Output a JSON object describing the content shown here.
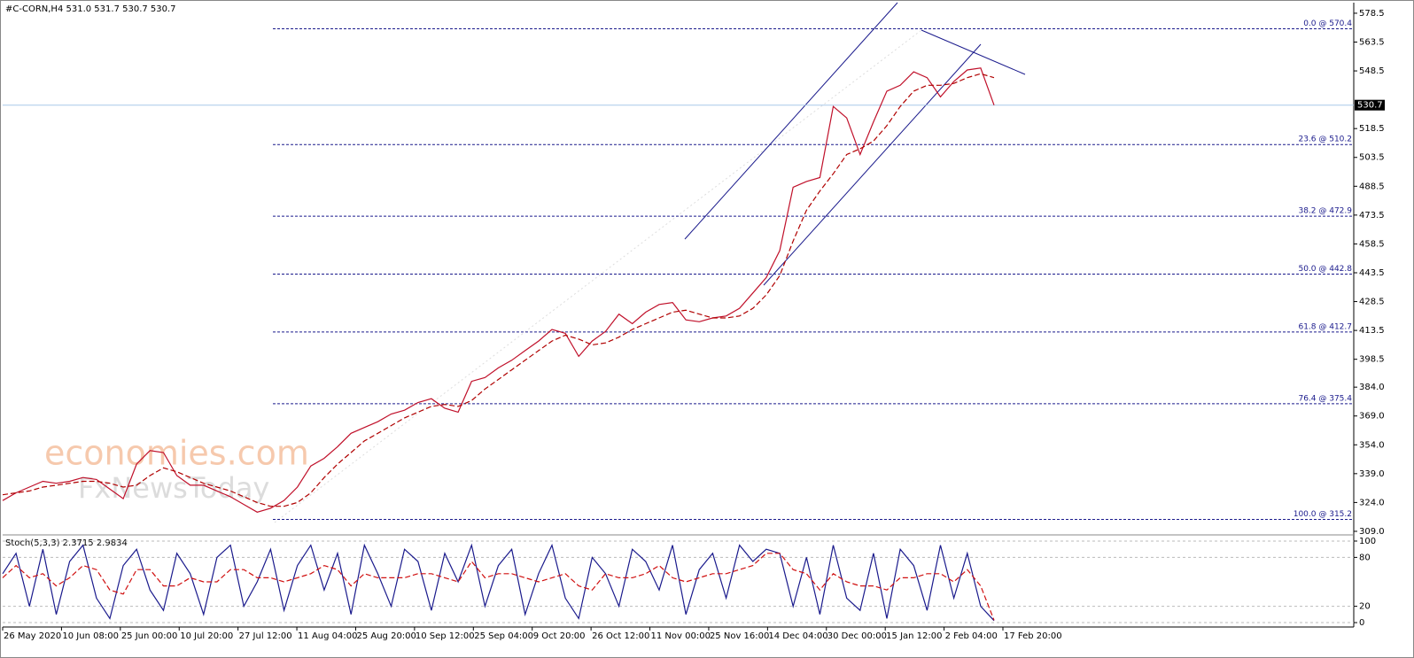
{
  "chart_data": {
    "type": "line",
    "title": "#C-CORN,H4  531.0 531.7 530.7 530.7",
    "watermarks": [
      "economies.com",
      "FxNewsToday"
    ],
    "ylim": [
      307.6,
      584.0
    ],
    "yticks": [
      578.5,
      563.5,
      548.5,
      518.5,
      503.5,
      488.5,
      473.5,
      458.5,
      443.5,
      428.5,
      413.5,
      398.5,
      {
        "value": 384.0,
        "label": "384.0"
      },
      {
        "value": 369.0,
        "label": "369.0"
      },
      {
        "value": 354.0,
        "label": "354.0"
      },
      {
        "value": 339.0,
        "label": "339.0"
      },
      {
        "value": 324.0,
        "label": "324.0"
      },
      {
        "value": 309.0,
        "label": "309.0"
      }
    ],
    "current_price": 530.7,
    "fib_levels": [
      {
        "value": 570.4,
        "label": "0.0 @ 570.4"
      },
      {
        "value": 510.2,
        "label": "23.6 @ 510.2"
      },
      {
        "value": 472.9,
        "label": "38.2 @ 472.9"
      },
      {
        "value": 442.8,
        "label": "50.0 @ 442.8"
      },
      {
        "value": 412.7,
        "label": "61.8 @ 412.7"
      },
      {
        "value": 375.4,
        "label": "76.4 @ 375.4"
      },
      {
        "value": 315.2,
        "label": "100.0 @ 315.2"
      }
    ],
    "x_labels": [
      "26 May 2020",
      "10 Jun 08:00",
      "25 Jun 00:00",
      "10 Jul 20:00",
      "27 Jul 12:00",
      "11 Aug 04:00",
      "25 Aug 20:00",
      "10 Sep 12:00",
      "25 Sep 04:00",
      "9 Oct 20:00",
      "26 Oct 12:00",
      "11 Nov 00:00",
      "25 Nov 16:00",
      "14 Dec 04:00",
      "30 Dec 00:00",
      "15 Jan 12:00",
      "2 Feb 04:00",
      "17 Feb 20:00"
    ],
    "series": [
      {
        "color": "#c0102a",
        "values": [
          325,
          329,
          332,
          335,
          334,
          335,
          337,
          336,
          331,
          326,
          344,
          351,
          350,
          338,
          333,
          333,
          330,
          327,
          323,
          319,
          321,
          325,
          332,
          343,
          347,
          353,
          360,
          363,
          366,
          370,
          372,
          376,
          378,
          373,
          371,
          387,
          389,
          394,
          398,
          403,
          408,
          414,
          412,
          400,
          408,
          413,
          422,
          417,
          423,
          427,
          428,
          419,
          418,
          420,
          421,
          425,
          433,
          441,
          455,
          488,
          491,
          493,
          530,
          524,
          505,
          522,
          538,
          541,
          548,
          545,
          535,
          543,
          549,
          550,
          530.7
        ]
      },
      {
        "color": "#b00000",
        "dashed": true,
        "values": [
          328,
          329,
          330,
          332,
          333,
          334,
          335,
          335,
          334,
          332,
          333,
          338,
          342,
          340,
          337,
          334,
          332,
          330,
          327,
          324,
          322,
          322,
          324,
          329,
          337,
          344,
          350,
          356,
          360,
          364,
          368,
          371,
          374,
          375,
          374,
          377,
          383,
          388,
          393,
          398,
          403,
          408,
          411,
          409,
          406,
          407,
          410,
          414,
          417,
          420,
          423,
          424,
          422,
          420,
          420,
          421,
          425,
          432,
          442,
          460,
          476,
          486,
          495,
          505,
          508,
          512,
          520,
          530,
          538,
          541,
          541,
          542,
          545,
          547,
          545
        ]
      }
    ],
    "indicator": {
      "title": "Stoch(5,3,3) 2.3715 2.9834",
      "ylim": [
        -5.4,
        105.4
      ],
      "yticks": [
        100,
        80,
        20,
        0
      ],
      "series": [
        {
          "color": "#1a1a8c",
          "values": [
            60,
            85,
            20,
            90,
            10,
            75,
            95,
            30,
            5,
            70,
            90,
            40,
            15,
            85,
            60,
            10,
            80,
            95,
            20,
            50,
            90,
            15,
            70,
            95,
            40,
            85,
            10,
            95,
            60,
            20,
            90,
            75,
            15,
            85,
            50,
            95,
            20,
            70,
            90,
            10,
            60,
            95,
            30,
            5,
            80,
            60,
            20,
            90,
            75,
            40,
            95,
            10,
            65,
            85,
            30,
            95,
            75,
            90,
            85,
            20,
            80,
            10,
            95,
            30,
            15,
            85,
            5,
            90,
            70,
            15,
            95,
            30,
            85,
            20,
            2.3715
          ]
        },
        {
          "color": "#d01010",
          "dashed": true,
          "values": [
            55,
            70,
            55,
            60,
            45,
            55,
            70,
            65,
            40,
            35,
            65,
            65,
            45,
            45,
            55,
            50,
            50,
            65,
            65,
            55,
            55,
            50,
            55,
            60,
            70,
            65,
            45,
            60,
            55,
            55,
            55,
            60,
            60,
            55,
            50,
            75,
            55,
            60,
            60,
            55,
            50,
            55,
            60,
            45,
            40,
            60,
            55,
            55,
            60,
            70,
            55,
            50,
            55,
            60,
            60,
            65,
            70,
            85,
            85,
            65,
            60,
            40,
            60,
            50,
            45,
            45,
            40,
            55,
            55,
            60,
            60,
            50,
            65,
            45,
            2.9834
          ]
        }
      ]
    }
  }
}
